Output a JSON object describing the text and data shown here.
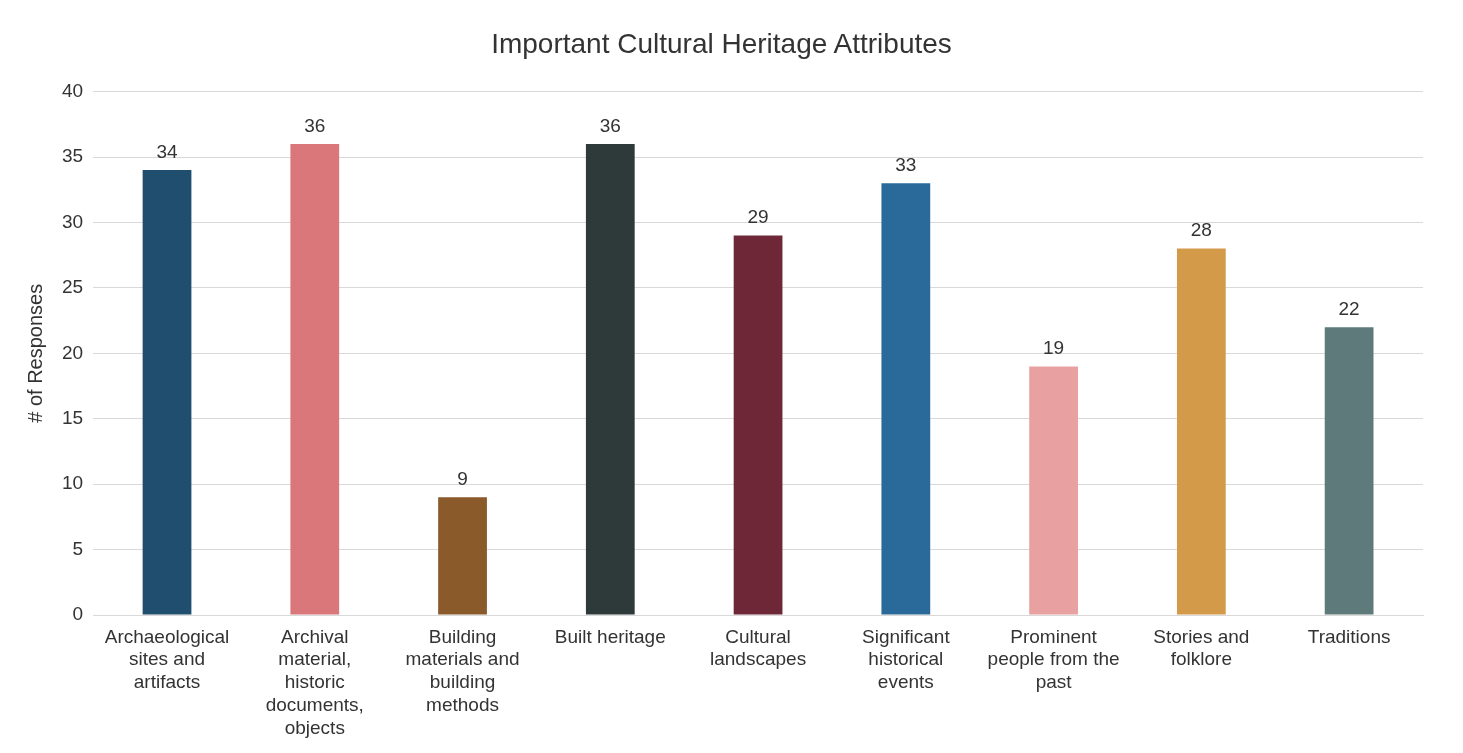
{
  "chart_data": {
    "type": "bar",
    "title": "Important Cultural Heritage Attributes",
    "ylabel": "# of Responses",
    "categories": [
      "Archaeological sites and artifacts",
      "Archival material, historic documents, objects",
      "Building materials and building methods",
      "Built heritage",
      "Cultural landscapes",
      "Significant historical events",
      "Prominent people from the past",
      "Stories and folklore",
      "Traditions"
    ],
    "values": [
      34,
      36,
      9,
      36,
      29,
      33,
      19,
      28,
      22
    ],
    "colors": [
      "#1f4e6e",
      "#d9777a",
      "#8a5a2b",
      "#2e3a3a",
      "#6e2737",
      "#2a6a9a",
      "#e8a0a0",
      "#d39a4a",
      "#5e7a7a"
    ],
    "ylim": [
      0,
      40
    ],
    "yticks": [
      0,
      5,
      10,
      15,
      20,
      25,
      30,
      35,
      40
    ],
    "grid": "y",
    "data_labels": true,
    "legend": false
  }
}
